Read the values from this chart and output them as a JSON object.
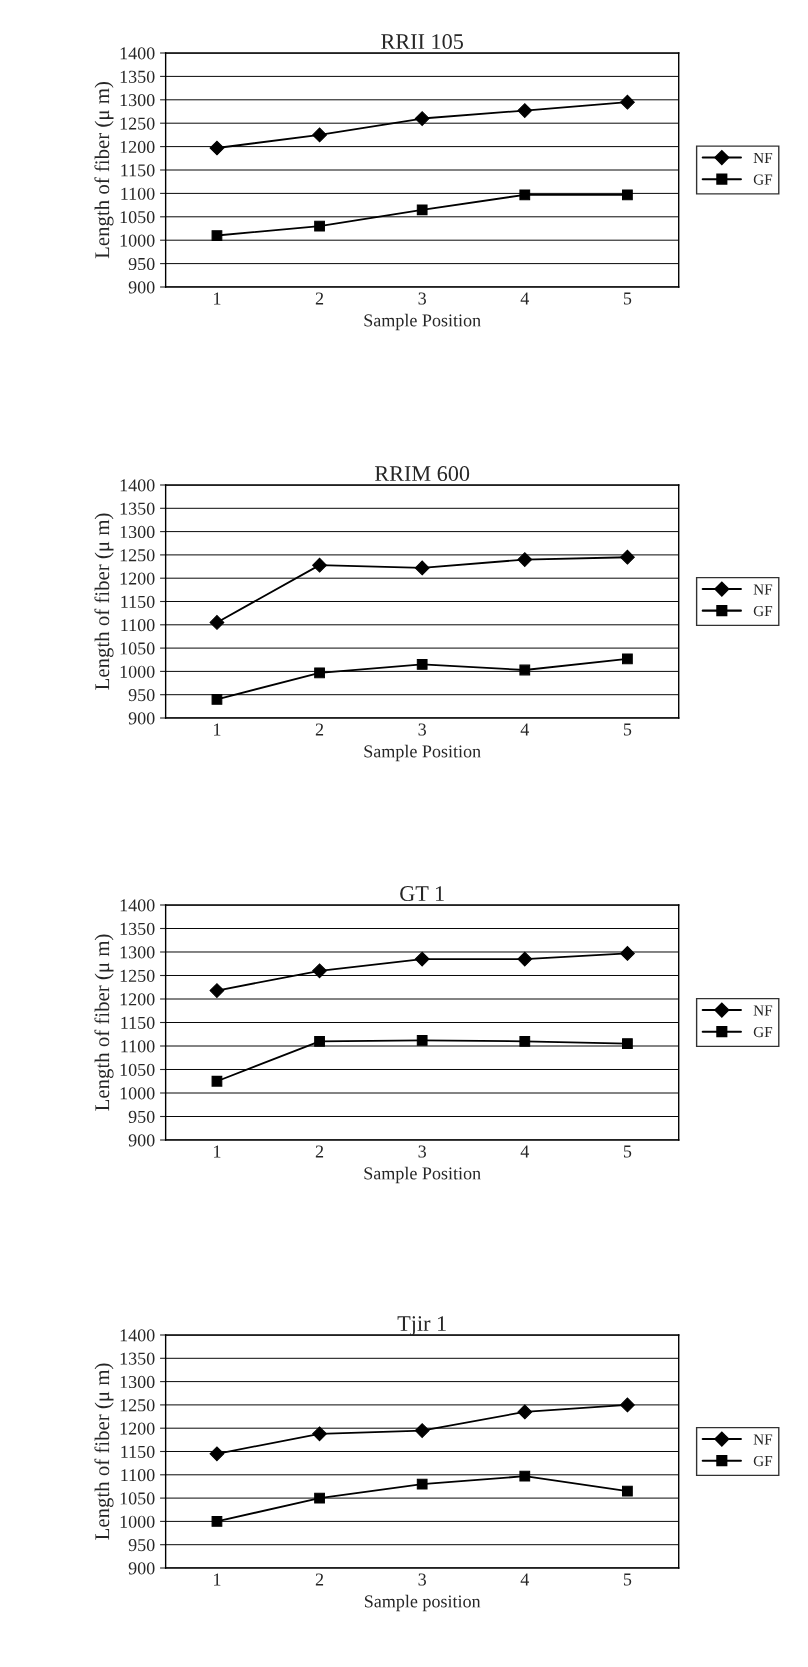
{
  "chart_data": [
    {
      "type": "line",
      "title": "RRII 105",
      "xlabel": "Sample Position",
      "ylabel": "Length of fiber (μ m)",
      "categories": [
        "1",
        "2",
        "3",
        "4",
        "5"
      ],
      "ylim": [
        900,
        1400
      ],
      "yticks": [
        900,
        950,
        1000,
        1050,
        1100,
        1150,
        1200,
        1250,
        1300,
        1350,
        1400
      ],
      "grid": "y",
      "legend": "right",
      "series": [
        {
          "name": "NF",
          "color": "#000000",
          "marker": "diamond",
          "values": [
            1197,
            1225,
            1260,
            1277,
            1295
          ]
        },
        {
          "name": "GF",
          "color": "#000000",
          "marker": "square",
          "values": [
            1010,
            1030,
            1065,
            1097,
            1097
          ]
        }
      ]
    },
    {
      "type": "line",
      "title": "RRIM 600",
      "xlabel": "Sample Position",
      "ylabel": "Length of fiber (μ m)",
      "categories": [
        "1",
        "2",
        "3",
        "4",
        "5"
      ],
      "ylim": [
        900,
        1400
      ],
      "yticks": [
        900,
        950,
        1000,
        1050,
        1100,
        1150,
        1200,
        1250,
        1300,
        1350,
        1400
      ],
      "grid": "y",
      "legend": "right",
      "series": [
        {
          "name": "NF",
          "color": "#000000",
          "marker": "diamond",
          "values": [
            1105,
            1228,
            1222,
            1240,
            1245
          ]
        },
        {
          "name": "GF",
          "color": "#000000",
          "marker": "square",
          "values": [
            940,
            997,
            1015,
            1003,
            1027
          ]
        }
      ]
    },
    {
      "type": "line",
      "title": "GT 1",
      "xlabel": "Sample Position",
      "ylabel": "Length of fiber (μ m)",
      "categories": [
        "1",
        "2",
        "3",
        "4",
        "5"
      ],
      "ylim": [
        900,
        1400
      ],
      "yticks": [
        900,
        950,
        1000,
        1050,
        1100,
        1150,
        1200,
        1250,
        1300,
        1350,
        1400
      ],
      "grid": "y",
      "legend": "right",
      "series": [
        {
          "name": "NF",
          "color": "#000000",
          "marker": "diamond",
          "values": [
            1218,
            1260,
            1285,
            1285,
            1297
          ]
        },
        {
          "name": "GF",
          "color": "#000000",
          "marker": "square",
          "values": [
            1025,
            1110,
            1112,
            1110,
            1105
          ]
        }
      ]
    },
    {
      "type": "line",
      "title": "Tjir 1",
      "xlabel": "Sample position",
      "ylabel": "Length of fiber (μ m)",
      "categories": [
        "1",
        "2",
        "3",
        "4",
        "5"
      ],
      "ylim": [
        900,
        1400
      ],
      "yticks": [
        900,
        950,
        1000,
        1050,
        1100,
        1150,
        1200,
        1250,
        1300,
        1350,
        1400
      ],
      "grid": "y",
      "legend": "right",
      "series": [
        {
          "name": "NF",
          "color": "#000000",
          "marker": "diamond",
          "values": [
            1145,
            1188,
            1195,
            1235,
            1250
          ]
        },
        {
          "name": "GF",
          "color": "#000000",
          "marker": "square",
          "values": [
            1000,
            1050,
            1080,
            1097,
            1065
          ]
        }
      ]
    }
  ]
}
